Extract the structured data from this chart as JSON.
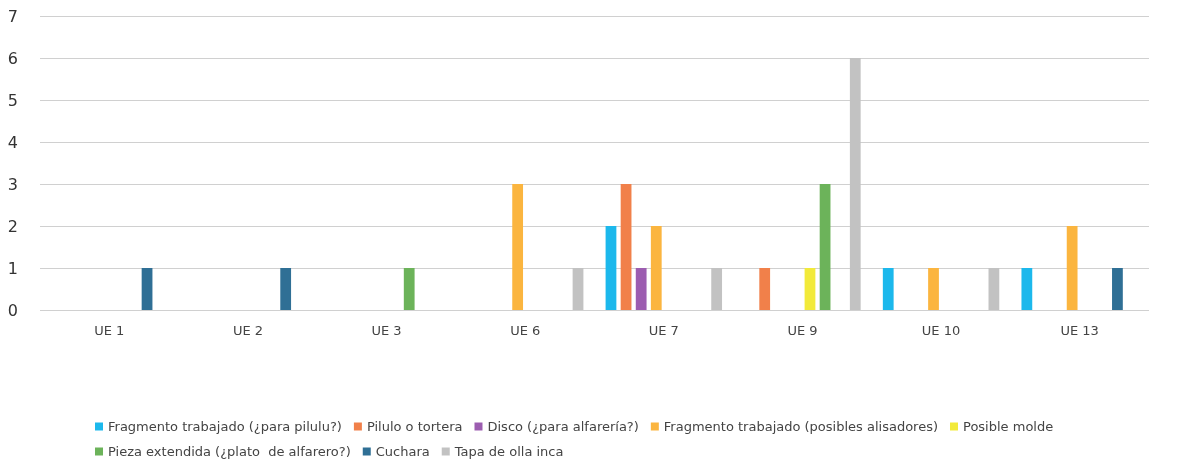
{
  "chart_data": {
    "type": "bar",
    "categories": [
      "UE 1",
      "UE 2",
      "UE 3",
      "UE 6",
      "UE 7",
      "UE 9",
      "UE 10",
      "UE 13"
    ],
    "series": [
      {
        "name": "Fragmento trabajado (¿para pilulu?)",
        "color": "#1cb8ec",
        "values": [
          null,
          null,
          null,
          null,
          2,
          null,
          1,
          1
        ]
      },
      {
        "name": "Pilulo o tortera",
        "color": "#f1804a",
        "values": [
          null,
          null,
          null,
          null,
          3,
          1,
          null,
          null
        ]
      },
      {
        "name": "Disco (¿para alfarería?)",
        "color": "#9c5db0",
        "values": [
          null,
          null,
          null,
          null,
          1,
          null,
          null,
          null
        ]
      },
      {
        "name": "Fragmento trabajado (posibles alisadores)",
        "color": "#fbb53f",
        "values": [
          null,
          null,
          null,
          3,
          2,
          null,
          1,
          2
        ]
      },
      {
        "name": "Posible molde",
        "color": "#f2ea3a",
        "values": [
          null,
          null,
          null,
          null,
          null,
          1,
          null,
          null
        ]
      },
      {
        "name": "Pieza extendida (¿plato  de alfarero?)",
        "color": "#6cb35a",
        "values": [
          null,
          null,
          1,
          null,
          null,
          3,
          null,
          null
        ]
      },
      {
        "name": "Cuchara",
        "color": "#2f6f95",
        "values": [
          1,
          1,
          null,
          null,
          null,
          null,
          null,
          1
        ]
      },
      {
        "name": "Tapa de olla inca",
        "color": "#c2c2c2",
        "values": [
          null,
          null,
          null,
          1,
          1,
          6,
          1,
          null
        ]
      }
    ],
    "ylim": [
      0,
      7
    ],
    "yticks": [
      0,
      1,
      2,
      3,
      4,
      5,
      6,
      7
    ],
    "grid": "y",
    "legend": "bottom"
  }
}
